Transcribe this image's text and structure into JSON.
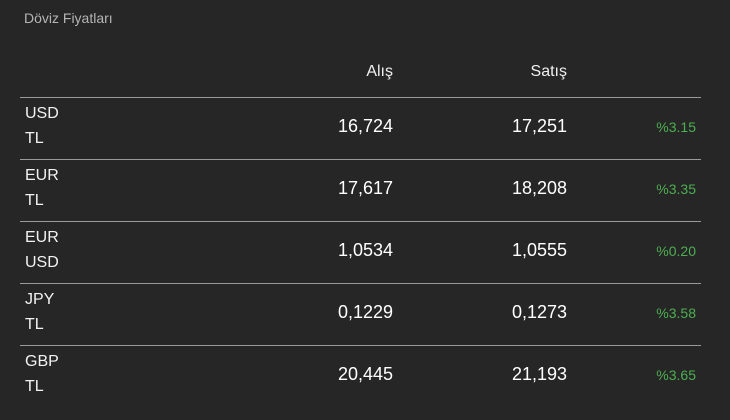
{
  "header": {
    "title": "Döviz Fiyatları"
  },
  "table": {
    "columns": [
      "Alış",
      "Satış"
    ],
    "rows": [
      {
        "pair": [
          "USD",
          "TL"
        ],
        "buy": "16,724",
        "sell": "17,251",
        "change": "%3.15"
      },
      {
        "pair": [
          "EUR",
          "TL"
        ],
        "buy": "17,617",
        "sell": "18,208",
        "change": "%3.35"
      },
      {
        "pair": [
          "EUR",
          "USD"
        ],
        "buy": "1,0534",
        "sell": "1,0555",
        "change": "%0.20"
      },
      {
        "pair": [
          "JPY",
          "TL"
        ],
        "buy": "0,1229",
        "sell": "0,1273",
        "change": "%3.58"
      },
      {
        "pair": [
          "GBP",
          "TL"
        ],
        "buy": "20,445",
        "sell": "21,193",
        "change": "%3.65"
      }
    ]
  }
}
